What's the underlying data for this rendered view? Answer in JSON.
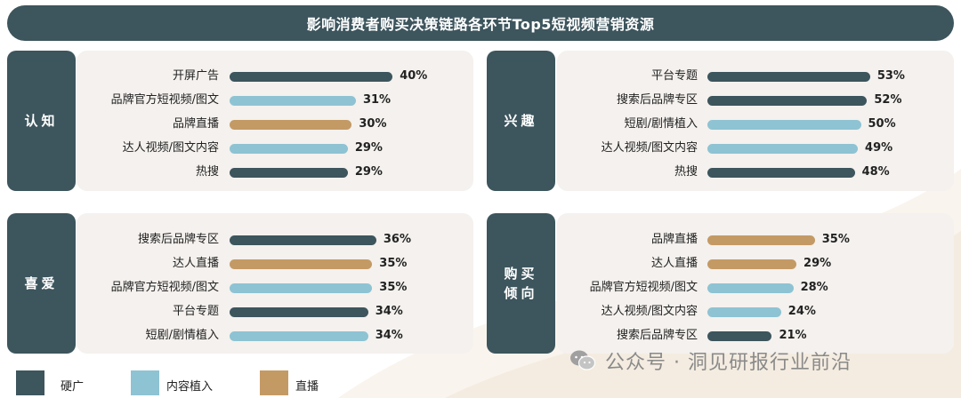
{
  "title": "影响消费者购买决策链路各环节Top5短视频营销资源",
  "colors": {
    "hard_ad": "#3d555d",
    "content": "#8ec3d3",
    "live": "#c49a64",
    "tab": "#3d555d",
    "panel": "#f4f1ee"
  },
  "chart_data": [
    {
      "type": "bar",
      "stage": "认知",
      "categories": [
        "开屏广告",
        "品牌官方短视频/图文",
        "品牌直播",
        "达人视频/图文内容",
        "热搜"
      ],
      "values": [
        40,
        31,
        30,
        29,
        29
      ],
      "value_labels": [
        "40%",
        "31%",
        "30%",
        "29%",
        "29%"
      ],
      "kinds": [
        "hard_ad",
        "content",
        "live",
        "content",
        "hard_ad"
      ],
      "unit": "%"
    },
    {
      "type": "bar",
      "stage": "兴趣",
      "categories": [
        "平台专题",
        "搜索后品牌专区",
        "短剧/剧情植入",
        "达人视频/图文内容",
        "热搜"
      ],
      "values": [
        53,
        52,
        50,
        49,
        48
      ],
      "value_labels": [
        "53%",
        "52%",
        "50%",
        "49%",
        "48%"
      ],
      "kinds": [
        "hard_ad",
        "hard_ad",
        "content",
        "content",
        "hard_ad"
      ],
      "unit": "%"
    },
    {
      "type": "bar",
      "stage": "喜爱",
      "categories": [
        "搜索后品牌专区",
        "达人直播",
        "品牌官方短视频/图文",
        "平台专题",
        "短剧/剧情植入"
      ],
      "values": [
        36,
        35,
        35,
        34,
        34
      ],
      "value_labels": [
        "36%",
        "35%",
        "35%",
        "34%",
        "34%"
      ],
      "kinds": [
        "hard_ad",
        "live",
        "content",
        "hard_ad",
        "content"
      ],
      "unit": "%"
    },
    {
      "type": "bar",
      "stage": "购买倾向",
      "stage_lines": [
        "购买",
        "倾向"
      ],
      "categories": [
        "品牌直播",
        "达人直播",
        "品牌官方短视频/图文",
        "达人视频/图文内容",
        "搜索后品牌专区"
      ],
      "values": [
        35,
        29,
        28,
        24,
        21
      ],
      "value_labels": [
        "35%",
        "29%",
        "28%",
        "24%",
        "21%"
      ],
      "kinds": [
        "live",
        "live",
        "content",
        "content",
        "hard_ad"
      ],
      "unit": "%"
    }
  ],
  "legend": [
    {
      "key": "hard_ad",
      "label": "硬广"
    },
    {
      "key": "content",
      "label": "内容植入"
    },
    {
      "key": "live",
      "label": "直播"
    }
  ],
  "watermark": {
    "text": "公众号 · 洞见研报行业前沿",
    "icon": "wechat-icon"
  }
}
